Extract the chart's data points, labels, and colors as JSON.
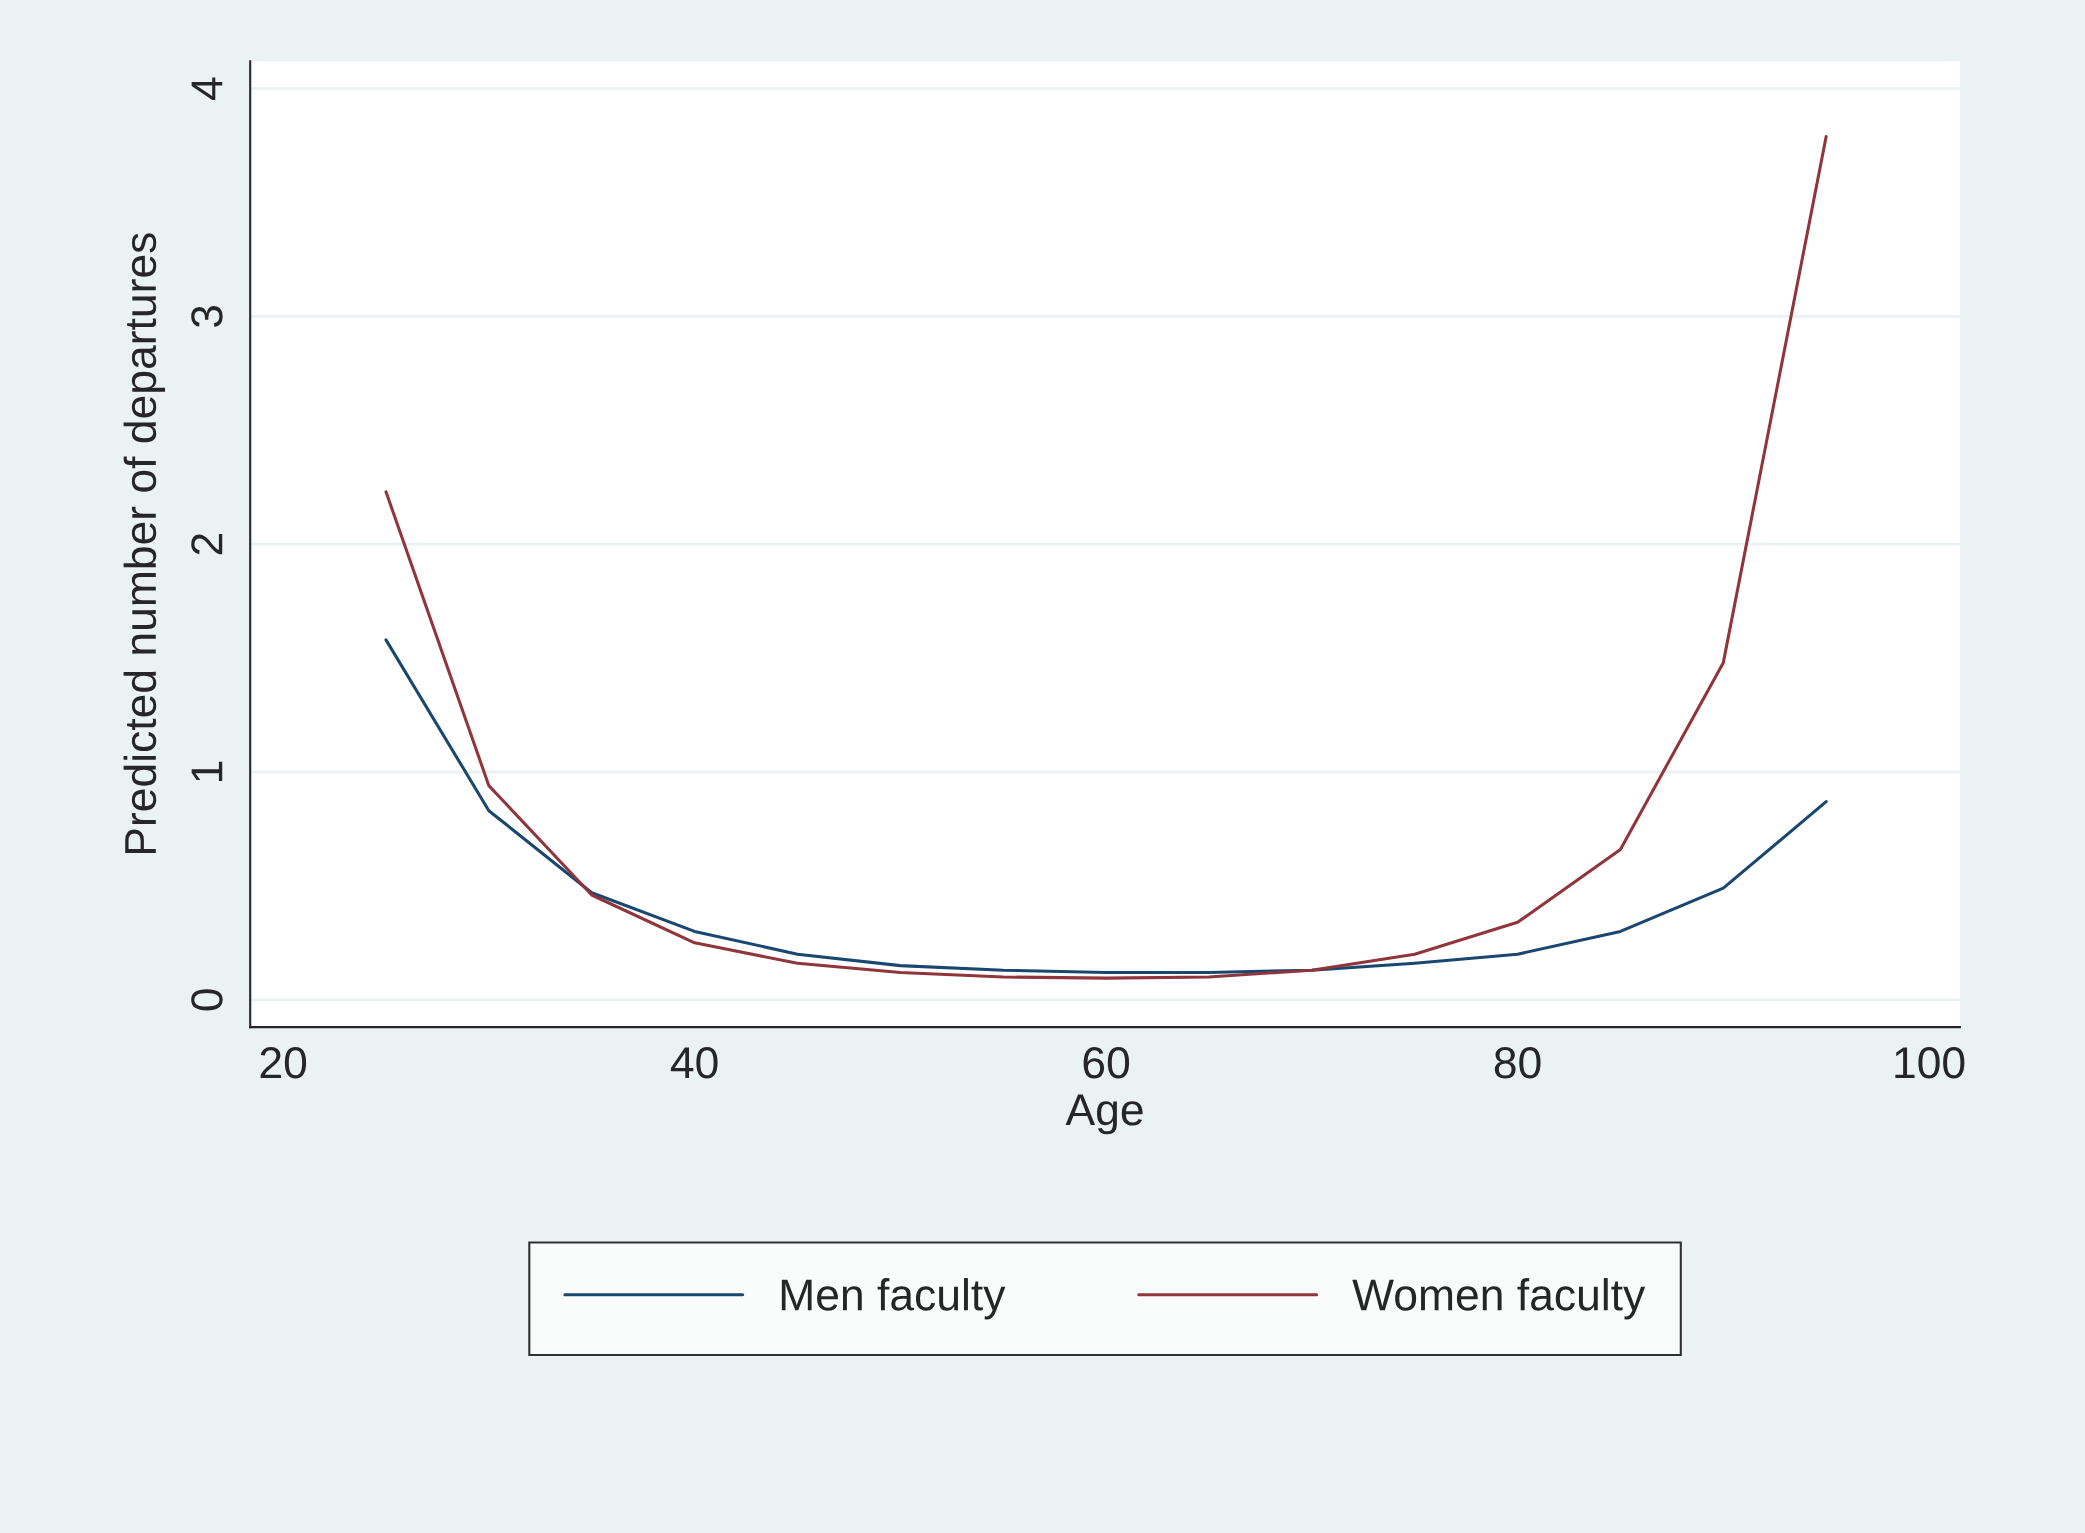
{
  "chart_data": {
    "type": "line",
    "xlabel": "Age",
    "ylabel": "Predicted number of departures",
    "x": [
      25,
      30,
      35,
      40,
      45,
      50,
      55,
      60,
      65,
      70,
      75,
      80,
      85,
      90,
      95
    ],
    "series": [
      {
        "name": "Men faculty",
        "color": "#1a476f",
        "values": [
          1.58,
          0.83,
          0.47,
          0.3,
          0.2,
          0.15,
          0.13,
          0.12,
          0.12,
          0.13,
          0.16,
          0.2,
          0.3,
          0.49,
          0.87
        ]
      },
      {
        "name": "Women faculty",
        "color": "#90353b",
        "values": [
          2.23,
          0.94,
          0.46,
          0.25,
          0.16,
          0.12,
          0.1,
          0.095,
          0.1,
          0.13,
          0.2,
          0.34,
          0.66,
          1.48,
          3.79
        ]
      }
    ],
    "xlim": [
      18.4,
      101.5
    ],
    "xticks": [
      20,
      40,
      60,
      80,
      100
    ],
    "ylim": [
      -0.12,
      4.12
    ],
    "yticks": [
      0,
      1,
      2,
      3,
      4
    ],
    "grid": "y",
    "legend": "bottom"
  }
}
